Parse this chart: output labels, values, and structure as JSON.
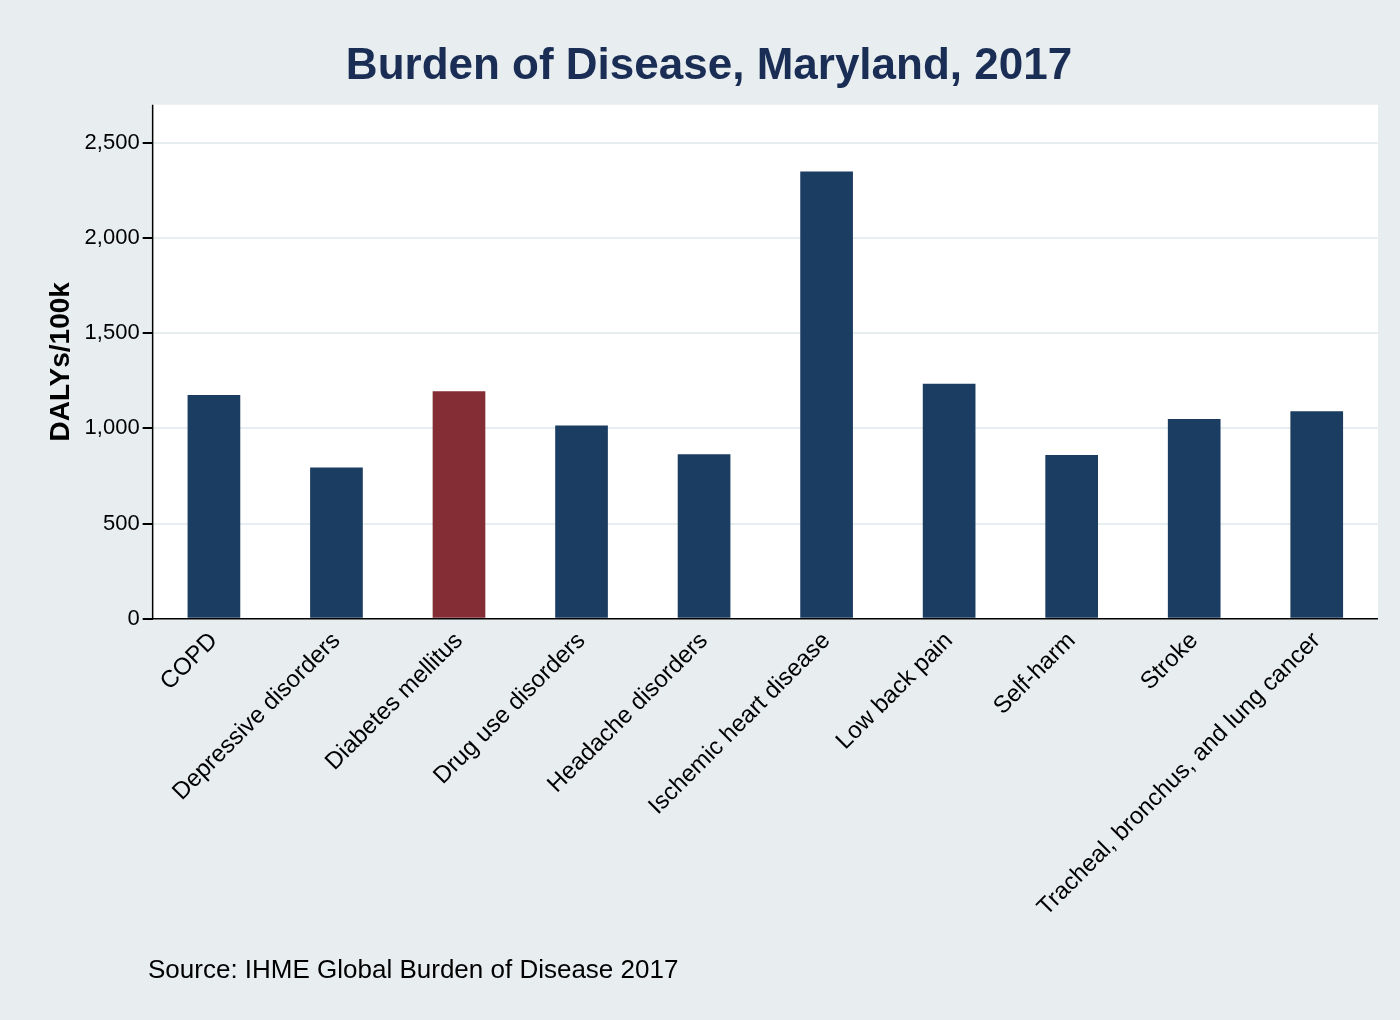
{
  "chart_data": {
    "type": "bar",
    "title": "Burden of Disease, Maryland, 2017",
    "ylabel": "DALYs/100k",
    "categories": [
      "COPD",
      "Depressive disorders",
      "Diabetes mellitus",
      "Drug use disorders",
      "Headache disorders",
      "Ischemic heart disease",
      "Low back pain",
      "Self-harm",
      "Stroke",
      "Tracheal, bronchus, and lung cancer"
    ],
    "values": [
      1175,
      795,
      1195,
      1015,
      865,
      2350,
      1235,
      860,
      1050,
      1090
    ],
    "colors": [
      "#1b3d62",
      "#1b3d62",
      "#842d35",
      "#1b3d62",
      "#1b3d62",
      "#1b3d62",
      "#1b3d62",
      "#1b3d62",
      "#1b3d62",
      "#1b3d62"
    ],
    "ylim": [
      0,
      2700
    ],
    "yticks": [
      0,
      {
        "value": 500,
        "label": "500"
      },
      {
        "value": 1000,
        "label": "1,000"
      },
      {
        "value": 1500,
        "label": "1,500"
      },
      {
        "value": 2000,
        "label": "2,000"
      },
      {
        "value": 2500,
        "label": "2,500"
      }
    ],
    "grid": "y",
    "legend": false,
    "annotations": [
      "Source: IHME Global Burden of Disease 2017"
    ]
  }
}
